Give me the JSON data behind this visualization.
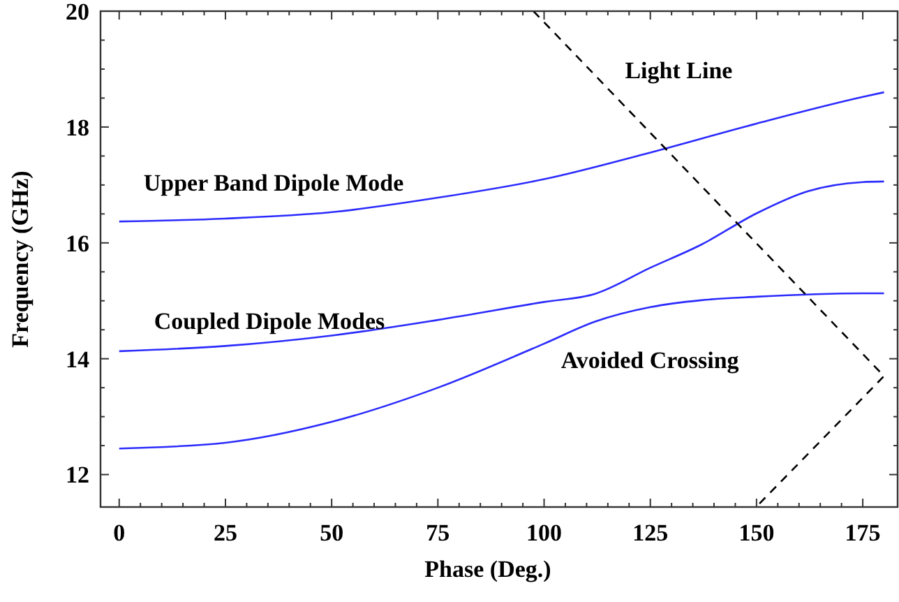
{
  "chart_data": {
    "type": "line",
    "xlabel": "Phase (Deg.)",
    "ylabel": "Frequency (GHz)",
    "xlim": [
      -4.4,
      183.2
    ],
    "ylim": [
      11.44,
      20
    ],
    "xticks": [
      0,
      25,
      50,
      75,
      100,
      125,
      150,
      175
    ],
    "yticks": [
      12,
      14,
      16,
      18,
      20
    ],
    "grid": false,
    "marker": "none",
    "series": [
      {
        "name": "Upper Band Dipole Mode",
        "color": "#2b2bff",
        "x": [
          0,
          25,
          50,
          75,
          100,
          125,
          150,
          175,
          180
        ],
        "values": [
          16.37,
          16.42,
          16.53,
          16.78,
          17.1,
          17.56,
          18.06,
          18.52,
          18.6
        ]
      },
      {
        "name": "Coupled Dipole Modes",
        "color": "#2b2bff",
        "x": [
          0,
          25,
          50,
          75,
          100,
          112,
          125,
          137,
          150,
          162,
          175,
          180
        ],
        "values": [
          14.13,
          14.22,
          14.4,
          14.67,
          14.98,
          15.12,
          15.57,
          15.97,
          16.51,
          16.89,
          17.05,
          17.06
        ]
      },
      {
        "color": "#2b2bff",
        "x": [
          0,
          25,
          50,
          75,
          100,
          112,
          125,
          137,
          150,
          175,
          180
        ],
        "values": [
          12.45,
          12.55,
          12.91,
          13.5,
          14.26,
          14.64,
          14.89,
          15.01,
          15.07,
          15.13,
          15.13
        ]
      },
      {
        "name": "Light Line",
        "color": "#000000",
        "line_style": "dashed",
        "x": [
          97.5,
          180,
          149.9
        ],
        "values": [
          20,
          13.7,
          11.44
        ]
      }
    ],
    "annotations": [
      "Avoided Crossing"
    ]
  }
}
